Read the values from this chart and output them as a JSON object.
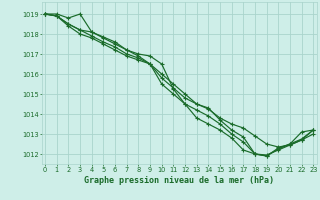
{
  "title": "Graphe pression niveau de la mer (hPa)",
  "bg_color": "#ceeee8",
  "grid_color": "#aad4cc",
  "line_color": "#1a6b2a",
  "marker_color": "#1a6b2a",
  "xlim": [
    -0.3,
    23.3
  ],
  "ylim": [
    1011.5,
    1019.6
  ],
  "yticks": [
    1012,
    1013,
    1014,
    1015,
    1016,
    1017,
    1018,
    1019
  ],
  "xticks": [
    0,
    1,
    2,
    3,
    4,
    5,
    6,
    7,
    8,
    9,
    10,
    11,
    12,
    13,
    14,
    15,
    16,
    17,
    18,
    19,
    20,
    21,
    22,
    23
  ],
  "series": [
    [
      1019.0,
      1019.0,
      1018.8,
      1019.0,
      1018.1,
      1017.8,
      1017.5,
      1017.2,
      1017.0,
      1016.9,
      1016.5,
      1015.25,
      1014.5,
      1013.8,
      1013.5,
      1013.2,
      1012.8,
      1012.2,
      1012.0,
      1011.9,
      1012.25,
      1012.5,
      1013.1,
      1013.2
    ],
    [
      1019.0,
      1018.9,
      1018.5,
      1018.2,
      1018.1,
      1017.85,
      1017.6,
      1017.2,
      1016.9,
      1016.5,
      1016.0,
      1015.5,
      1015.0,
      1014.5,
      1014.25,
      1013.8,
      1013.5,
      1013.3,
      1012.9,
      1012.5,
      1012.35,
      1012.45,
      1012.7,
      1013.0
    ],
    [
      1019.0,
      1018.9,
      1018.5,
      1018.2,
      1017.9,
      1017.6,
      1017.35,
      1017.0,
      1016.8,
      1016.5,
      1015.8,
      1015.3,
      1014.8,
      1014.5,
      1014.3,
      1013.7,
      1013.2,
      1012.85,
      1012.0,
      1011.9,
      1012.3,
      1012.5,
      1012.75,
      1013.2
    ],
    [
      1019.0,
      1018.9,
      1018.4,
      1018.0,
      1017.8,
      1017.5,
      1017.2,
      1016.9,
      1016.7,
      1016.5,
      1015.5,
      1015.0,
      1014.5,
      1014.2,
      1013.9,
      1013.5,
      1013.0,
      1012.6,
      1012.0,
      1011.95,
      1012.2,
      1012.45,
      1012.7,
      1013.2
    ]
  ],
  "title_fontsize": 6.0,
  "tick_fontsize": 4.8,
  "linewidth": 0.85,
  "markersize": 3.5,
  "markeredgewidth": 0.8
}
